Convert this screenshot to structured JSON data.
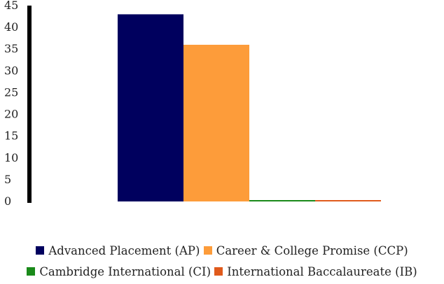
{
  "chart_data": {
    "type": "bar",
    "title": "",
    "xlabel": "",
    "ylabel": "",
    "ylim": [
      0,
      45
    ],
    "yticks": [
      0,
      5,
      10,
      15,
      20,
      25,
      30,
      35,
      40,
      45
    ],
    "grid": false,
    "legend_position": "bottom",
    "series": [
      {
        "name": "Advanced Placement (AP)",
        "value": 43,
        "color": "#00005e"
      },
      {
        "name": "Career & College Promise (CCP)",
        "value": 36,
        "color": "#fd9c3a"
      },
      {
        "name": "Cambridge International (CI)",
        "value": 0,
        "color": "#1a8a1a"
      },
      {
        "name": "International Baccalaureate (IB)",
        "value": 0,
        "color": "#e05a1c"
      }
    ]
  }
}
